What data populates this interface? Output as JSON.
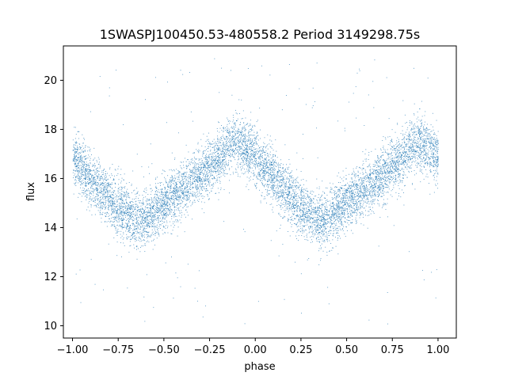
{
  "chart_data": {
    "type": "scatter",
    "title": "1SWASPJ100450.53-480558.2 Period 3149298.75s",
    "xlabel": "phase",
    "ylabel": "flux",
    "xlim": [
      -1.05,
      1.1
    ],
    "ylim": [
      9.5,
      21.4
    ],
    "xticks": [
      -1.0,
      -0.75,
      -0.5,
      -0.25,
      0.0,
      0.25,
      0.5,
      0.75,
      1.0
    ],
    "xtick_labels": [
      "−1.00",
      "−0.75",
      "−0.50",
      "−0.25",
      "0.00",
      "0.25",
      "0.50",
      "0.75",
      "1.00"
    ],
    "yticks": [
      10,
      12,
      14,
      16,
      18,
      20
    ],
    "ytick_labels": [
      "10",
      "12",
      "14",
      "16",
      "18",
      "20"
    ],
    "grid": false,
    "point_color": "#1f77b4",
    "series": [
      {
        "curve": {
          "x": [
            0.0,
            0.05,
            0.1,
            0.15,
            0.2,
            0.25,
            0.3,
            0.35,
            0.4,
            0.45,
            0.5,
            0.55,
            0.6,
            0.65,
            0.7,
            0.75,
            0.8,
            0.85,
            0.9,
            0.95,
            1.0
          ],
          "y": [
            16.9,
            16.4,
            16.0,
            15.6,
            15.2,
            14.8,
            14.5,
            14.3,
            14.4,
            14.7,
            15.0,
            15.3,
            15.6,
            15.9,
            16.2,
            16.5,
            16.9,
            17.4,
            17.5,
            17.2,
            16.9
          ]
        },
        "scatter_sigma": 0.55,
        "point_count": 9000,
        "outlier_fraction": 0.02,
        "outlier_range": [
          10.0,
          21.0
        ]
      }
    ]
  }
}
